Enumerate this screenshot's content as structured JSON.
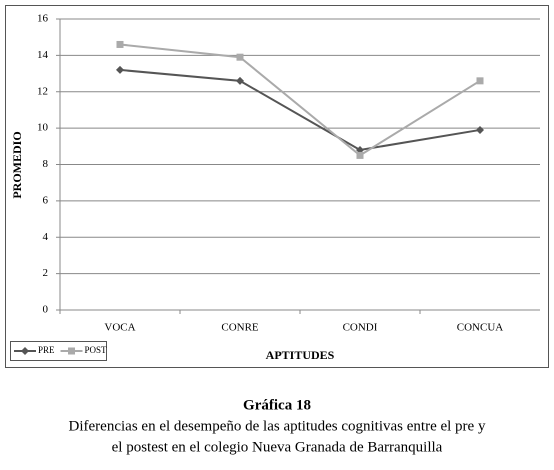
{
  "chart_data": {
    "type": "line",
    "x_label": "APTITUDES",
    "y_label": "PROMEDIO",
    "categories": [
      "VOCA",
      "CONRE",
      "CONDI",
      "CONCUA"
    ],
    "series": [
      {
        "name": "PRE",
        "color": "#555555",
        "marker": "diamond",
        "values": [
          13.2,
          12.6,
          8.8,
          9.9
        ]
      },
      {
        "name": "POST",
        "color": "#aaaaaa",
        "marker": "square",
        "values": [
          14.6,
          13.9,
          8.5,
          12.6
        ]
      }
    ],
    "ylim": [
      0,
      16
    ],
    "yticks": [
      0,
      2,
      4,
      6,
      8,
      10,
      12,
      14,
      16
    ],
    "grid": true,
    "legend": "bottom-left"
  },
  "caption": {
    "title": "Gráfica 18",
    "lines": [
      "Diferencias en el desempeño de las aptitudes cognitivas entre el pre y",
      "el postest en el colegio Nueva Granada de Barranquilla"
    ]
  }
}
